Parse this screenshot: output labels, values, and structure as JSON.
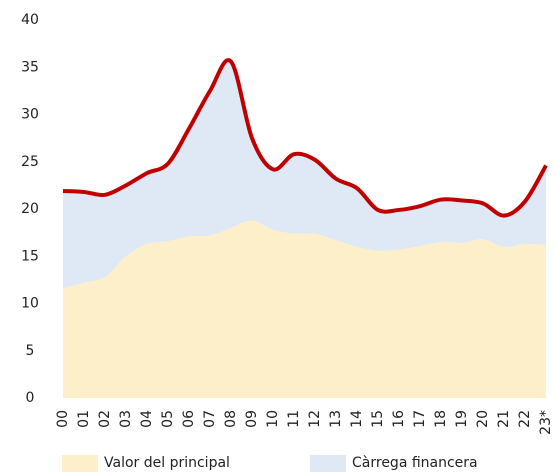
{
  "chart_data": {
    "type": "stacked_area",
    "categories": [
      "00",
      "01",
      "02",
      "03",
      "04",
      "05",
      "06",
      "07",
      "08",
      "09",
      "10",
      "11",
      "12",
      "13",
      "14",
      "15",
      "16",
      "17",
      "18",
      "19",
      "20",
      "21",
      "22",
      "23*"
    ],
    "series": [
      {
        "name": "Valor del principal",
        "color": "#fcefc9",
        "values": [
          11.6,
          12.2,
          12.8,
          15.0,
          16.3,
          16.6,
          17.1,
          17.2,
          18.0,
          18.8,
          17.8,
          17.4,
          17.4,
          16.7,
          16.0,
          15.6,
          15.7,
          16.1,
          16.5,
          16.4,
          16.8,
          16.0,
          16.3,
          16.2
        ]
      },
      {
        "name": "Càrrega financera",
        "color": "#dfe8f5",
        "values": [
          10.3,
          9.6,
          8.7,
          7.5,
          7.5,
          8.2,
          11.4,
          15.3,
          17.6,
          8.7,
          6.4,
          8.4,
          7.8,
          6.5,
          6.2,
          4.3,
          4.2,
          4.2,
          4.5,
          4.5,
          3.8,
          3.3,
          4.5,
          8.4
        ]
      }
    ],
    "line_color": "#c00000",
    "ylim": [
      0,
      40
    ],
    "yticks": [
      0,
      5,
      10,
      15,
      20,
      25,
      30,
      35,
      40
    ]
  }
}
